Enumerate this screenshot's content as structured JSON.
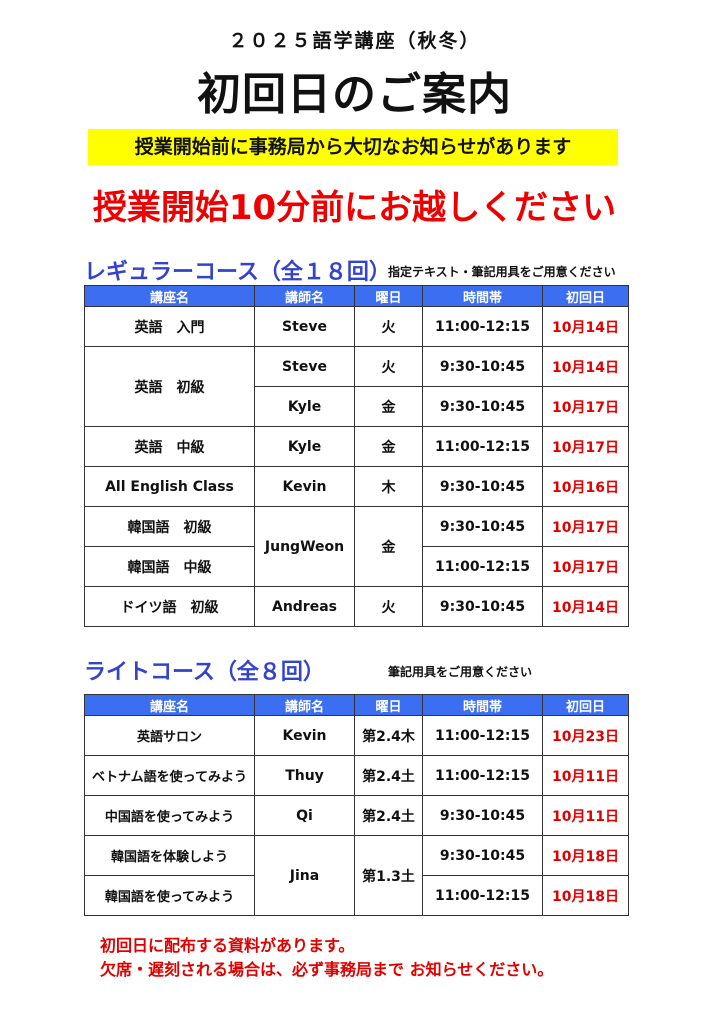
{
  "header": {
    "subtitle": "２０２５語学講座（秋冬）",
    "title": "初回日のご案内",
    "notice": "授業開始前に事務局から大切なお知らせがあります",
    "arrive": "授業開始10分前にお越しください"
  },
  "columns": [
    "講座名",
    "講師名",
    "曜日",
    "時間帯",
    "初回日"
  ],
  "regular": {
    "title": "レギュラーコース（全１８回）",
    "note": "指定テキスト・筆記用具をご用意ください",
    "rows": [
      [
        {
          "t": "英語　入門"
        },
        {
          "t": "Steve"
        },
        {
          "t": "火"
        },
        {
          "t": "11:00-12:15"
        },
        {
          "t": "10月14日"
        }
      ],
      [
        {
          "t": "英語　初級",
          "rs": 2
        },
        {
          "t": "Steve"
        },
        {
          "t": "火"
        },
        {
          "t": "9:30-10:45"
        },
        {
          "t": "10月14日"
        }
      ],
      [
        null,
        {
          "t": "Kyle"
        },
        {
          "t": "金"
        },
        {
          "t": "9:30-10:45"
        },
        {
          "t": "10月17日"
        }
      ],
      [
        {
          "t": "英語　中級"
        },
        {
          "t": "Kyle"
        },
        {
          "t": "金"
        },
        {
          "t": "11:00-12:15"
        },
        {
          "t": "10月17日"
        }
      ],
      [
        {
          "t": "All English Class"
        },
        {
          "t": "Kevin"
        },
        {
          "t": "木"
        },
        {
          "t": "9:30-10:45"
        },
        {
          "t": "10月16日"
        }
      ],
      [
        {
          "t": "韓国語　初級"
        },
        {
          "t": "JungWeon",
          "rs": 2
        },
        {
          "t": "金",
          "rs": 2
        },
        {
          "t": "9:30-10:45"
        },
        {
          "t": "10月17日"
        }
      ],
      [
        {
          "t": "韓国語　中級"
        },
        null,
        null,
        {
          "t": "11:00-12:15"
        },
        {
          "t": "10月17日"
        }
      ],
      [
        {
          "t": "ドイツ語　初級"
        },
        {
          "t": "Andreas"
        },
        {
          "t": "火"
        },
        {
          "t": "9:30-10:45"
        },
        {
          "t": "10月14日"
        }
      ]
    ]
  },
  "light": {
    "title": "ライトコース（全８回）",
    "note": "筆記用具をご用意ください",
    "rows": [
      [
        {
          "t": "英語サロン"
        },
        {
          "t": "Kevin"
        },
        {
          "t": "第2.4木"
        },
        {
          "t": "11:00-12:15"
        },
        {
          "t": "10月23日"
        }
      ],
      [
        {
          "t": "ベトナム語を使ってみよう"
        },
        {
          "t": "Thuy"
        },
        {
          "t": "第2.4土"
        },
        {
          "t": "11:00-12:15"
        },
        {
          "t": "10月11日"
        }
      ],
      [
        {
          "t": "中国語を使ってみよう"
        },
        {
          "t": "Qi"
        },
        {
          "t": "第2.4土"
        },
        {
          "t": "9:30-10:45"
        },
        {
          "t": "10月11日"
        }
      ],
      [
        {
          "t": "韓国語を体験しよう"
        },
        {
          "t": "Jina",
          "rs": 2
        },
        {
          "t": "第1.3土",
          "rs": 2
        },
        {
          "t": "9:30-10:45"
        },
        {
          "t": "10月18日"
        }
      ],
      [
        {
          "t": "韓国語を使ってみよう"
        },
        null,
        null,
        {
          "t": "11:00-12:15"
        },
        {
          "t": "10月18日"
        }
      ]
    ]
  },
  "footer": [
    "初回日に配布する資料があります。",
    "欠席・遅刻される場合は、必ず事務局まで お知らせください。"
  ],
  "colors": {
    "header_blue": "#3c6ef2",
    "section_blue": "#3344cc",
    "date_red": "#e00000",
    "notice_yellow": "#ffff00"
  }
}
